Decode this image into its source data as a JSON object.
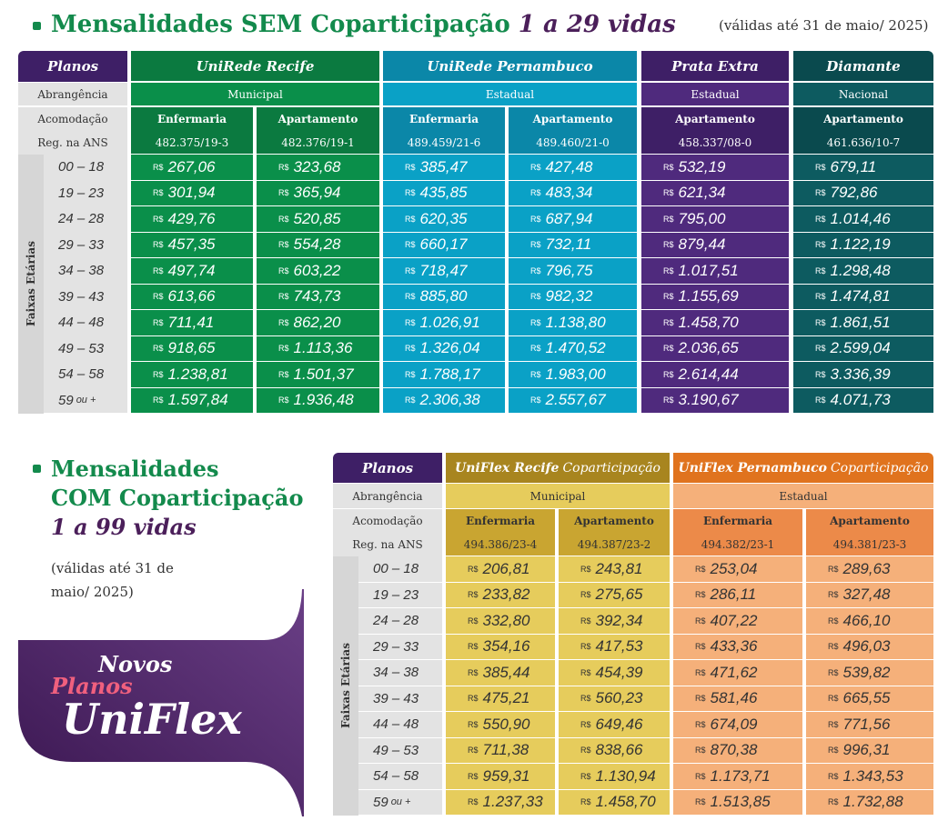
{
  "top": {
    "title_prefix": "Mensalidades SEM Coparticipação",
    "title_highlight": "1 a 29 vidas",
    "validity": "(válidas até 31 de maio/ 2025)",
    "labels": {
      "planos": "Planos",
      "abrangencia": "Abrangência",
      "acomodacao": "Acomodação",
      "reg": "Reg. na ANS",
      "faixas": "Faixas Etárias"
    },
    "plans": [
      {
        "name": "UniRede Recife",
        "abrangencia": "Municipal"
      },
      {
        "name": "UniRede Pernambuco",
        "abrangencia": "Estadual"
      },
      {
        "name": "Prata Extra",
        "abrangencia": "Estadual"
      },
      {
        "name": "Diamante",
        "abrangencia": "Nacional"
      }
    ],
    "columns": [
      {
        "acomodacao": "Enfermaria",
        "reg": "482.375/19-3",
        "prices": [
          "267,06",
          "301,94",
          "429,76",
          "457,35",
          "497,74",
          "613,66",
          "711,41",
          "918,65",
          "1.238,81",
          "1.597,84"
        ]
      },
      {
        "acomodacao": "Apartamento",
        "reg": "482.376/19-1",
        "prices": [
          "323,68",
          "365,94",
          "520,85",
          "554,28",
          "603,22",
          "743,73",
          "862,20",
          "1.113,36",
          "1.501,37",
          "1.936,48"
        ]
      },
      {
        "acomodacao": "Enfermaria",
        "reg": "489.459/21-6",
        "prices": [
          "385,47",
          "435,85",
          "620,35",
          "660,17",
          "718,47",
          "885,80",
          "1.026,91",
          "1.326,04",
          "1.788,17",
          "2.306,38"
        ]
      },
      {
        "acomodacao": "Apartamento",
        "reg": "489.460/21-0",
        "prices": [
          "427,48",
          "483,34",
          "687,94",
          "732,11",
          "796,75",
          "982,32",
          "1.138,80",
          "1.470,52",
          "1.983,00",
          "2.557,67"
        ]
      },
      {
        "acomodacao": "Apartamento",
        "reg": "458.337/08-0",
        "prices": [
          "532,19",
          "621,34",
          "795,00",
          "879,44",
          "1.017,51",
          "1.155,69",
          "1.458,70",
          "2.036,65",
          "2.614,44",
          "3.190,67"
        ]
      },
      {
        "acomodacao": "Apartamento",
        "reg": "461.636/10-7",
        "prices": [
          "679,11",
          "792,86",
          "1.014,46",
          "1.122,19",
          "1.298,48",
          "1.474,81",
          "1.861,51",
          "2.599,04",
          "3.336,39",
          "4.071,73"
        ]
      }
    ]
  },
  "ages": [
    "00 – 18",
    "19 – 23",
    "24 – 28",
    "29 – 33",
    "34 – 38",
    "39 – 43",
    "44 – 48",
    "49 – 53",
    "54 – 58",
    "59"
  ],
  "age_suffix": "ou +",
  "currency": "R$",
  "bottom": {
    "title_line1": "Mensalidades",
    "title_line2": "COM Coparticipação",
    "title_highlight": "1 a 99 vidas",
    "validity_line1": "(válidas até 31 de",
    "validity_line2": "maio/ 2025)",
    "banner": {
      "line1": "Novos",
      "line2": "Planos",
      "line3": "UniFlex"
    },
    "labels": {
      "planos": "Planos",
      "abrangencia": "Abrangência",
      "acomodacao": "Acomodação",
      "reg": "Reg. na ANS",
      "faixas": "Faixas Etárias"
    },
    "plans": [
      {
        "name": "UniFlex Recife",
        "suffix": "Coparticipação",
        "abrangencia": "Municipal"
      },
      {
        "name": "UniFlex Pernambuco",
        "suffix": "Coparticipação",
        "abrangencia": "Estadual"
      }
    ],
    "columns": [
      {
        "acomodacao": "Enfermaria",
        "reg": "494.386/23-4",
        "prices": [
          "206,81",
          "233,82",
          "332,80",
          "354,16",
          "385,44",
          "475,21",
          "550,90",
          "711,38",
          "959,31",
          "1.237,33"
        ]
      },
      {
        "acomodacao": "Apartamento",
        "reg": "494.387/23-2",
        "prices": [
          "243,81",
          "275,65",
          "392,34",
          "417,53",
          "454,39",
          "560,23",
          "649,46",
          "838,66",
          "1.130,94",
          "1.458,70"
        ]
      },
      {
        "acomodacao": "Enfermaria",
        "reg": "494.382/23-1",
        "prices": [
          "253,04",
          "286,11",
          "407,22",
          "433,36",
          "471,62",
          "581,46",
          "674,09",
          "870,38",
          "1.173,71",
          "1.513,85"
        ]
      },
      {
        "acomodacao": "Apartamento",
        "reg": "494.381/23-3",
        "prices": [
          "289,63",
          "327,48",
          "466,10",
          "496,03",
          "539,82",
          "665,55",
          "771,56",
          "996,31",
          "1.343,53",
          "1.732,88"
        ]
      }
    ]
  },
  "colors": {
    "green": "#0a8f4a",
    "green_dark": "#0b7a40",
    "cyan": "#0aa1c6",
    "cyan_dark": "#0b87a8",
    "purple": "#4f2a7d",
    "purple_dark": "#3e1f66",
    "teal": "#0d5b60",
    "teal_dark": "#0a4a4e",
    "gold": "#e6cc5c",
    "gold_dark": "#c9a531",
    "orange": "#f5b07a",
    "orange_dark": "#ec8a49",
    "label_gray": "#e3e3e3",
    "age_gray": "#d6d6d6"
  }
}
